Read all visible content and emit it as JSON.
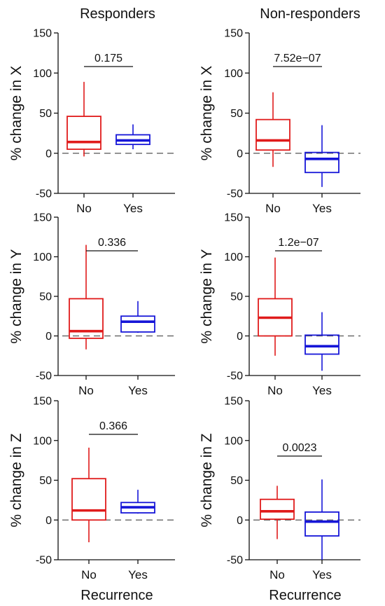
{
  "figure": {
    "column_titles": [
      "Responders",
      "Non-responders"
    ],
    "xlabel": "Recurrence",
    "colors": {
      "No": "#e01b1b",
      "Yes": "#1616d8",
      "axis": "#111111",
      "reference_line": "#555555"
    }
  },
  "chart_data": [
    {
      "type": "box",
      "column": "Responders",
      "ylabel": "% change in X",
      "categories": [
        "No",
        "Yes"
      ],
      "ylim": [
        -50,
        150
      ],
      "yticks": [
        -50,
        0,
        50,
        100,
        150
      ],
      "boxes": [
        {
          "name": "No",
          "whisker_low": -4,
          "q1": 5,
          "median": 14,
          "q3": 46,
          "whisker_high": 89
        },
        {
          "name": "Yes",
          "whisker_low": 5,
          "q1": 11,
          "median": 16,
          "q3": 23,
          "whisker_high": 36
        }
      ],
      "p_value": "0.175",
      "reference_line": 0
    },
    {
      "type": "box",
      "column": "Non-responders",
      "ylabel": "% change in X",
      "categories": [
        "No",
        "Yes"
      ],
      "ylim": [
        -50,
        150
      ],
      "yticks": [
        -50,
        0,
        50,
        100,
        150
      ],
      "boxes": [
        {
          "name": "No",
          "whisker_low": -17,
          "q1": 4,
          "median": 16,
          "q3": 42,
          "whisker_high": 76
        },
        {
          "name": "Yes",
          "whisker_low": -42,
          "q1": -24,
          "median": -7,
          "q3": 1,
          "whisker_high": 35
        }
      ],
      "p_value": "7.52e−07",
      "reference_line": 0
    },
    {
      "type": "box",
      "column": "Responders",
      "ylabel": "% change in Y",
      "categories": [
        "No",
        "Yes"
      ],
      "ylim": [
        -50,
        150
      ],
      "yticks": [
        -50,
        0,
        50,
        100,
        150
      ],
      "boxes": [
        {
          "name": "No",
          "whisker_low": -17,
          "q1": -3,
          "median": 6,
          "q3": 47,
          "whisker_high": 115
        },
        {
          "name": "Yes",
          "whisker_low": 4,
          "q1": 5,
          "median": 18,
          "q3": 25,
          "whisker_high": 44
        }
      ],
      "p_value": "0.336",
      "reference_line": 0
    },
    {
      "type": "box",
      "column": "Non-responders",
      "ylabel": "% change in Y",
      "categories": [
        "No",
        "Yes"
      ],
      "ylim": [
        -50,
        150
      ],
      "yticks": [
        -50,
        0,
        50,
        100,
        150
      ],
      "boxes": [
        {
          "name": "No",
          "whisker_low": -25,
          "q1": 0,
          "median": 23,
          "q3": 47,
          "whisker_high": 99
        },
        {
          "name": "Yes",
          "whisker_low": -44,
          "q1": -23,
          "median": -13,
          "q3": 1,
          "whisker_high": 30
        }
      ],
      "p_value": "1.2e−07",
      "reference_line": 0
    },
    {
      "type": "box",
      "column": "Responders",
      "ylabel": "% change in Z",
      "categories": [
        "No",
        "Yes"
      ],
      "ylim": [
        -50,
        150
      ],
      "yticks": [
        -50,
        0,
        50,
        100,
        150
      ],
      "boxes": [
        {
          "name": "No",
          "whisker_low": -28,
          "q1": 0,
          "median": 12,
          "q3": 52,
          "whisker_high": 91
        },
        {
          "name": "Yes",
          "whisker_low": 8,
          "q1": 9,
          "median": 16,
          "q3": 22,
          "whisker_high": 38
        }
      ],
      "p_value": "0.366",
      "reference_line": 0
    },
    {
      "type": "box",
      "column": "Non-responders",
      "ylabel": "% change in Z",
      "categories": [
        "No",
        "Yes"
      ],
      "ylim": [
        -50,
        150
      ],
      "yticks": [
        -50,
        0,
        50,
        100,
        150
      ],
      "boxes": [
        {
          "name": "No",
          "whisker_low": -24,
          "q1": 1,
          "median": 11,
          "q3": 26,
          "whisker_high": 43
        },
        {
          "name": "Yes",
          "whisker_low": -50,
          "q1": -20,
          "median": -2,
          "q3": 10,
          "whisker_high": 51
        }
      ],
      "p_value": "0.0023",
      "reference_line": 0
    }
  ]
}
